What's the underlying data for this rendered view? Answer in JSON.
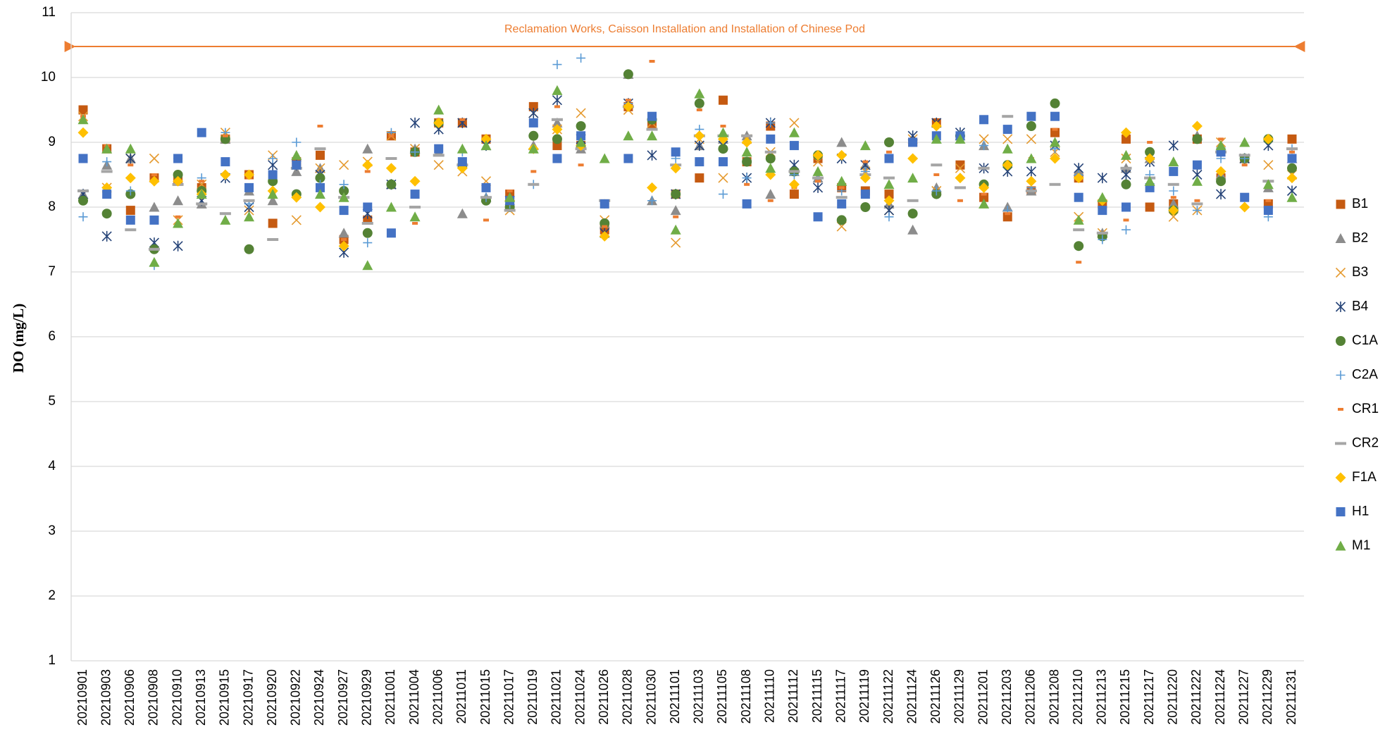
{
  "chart_data": {
    "type": "scatter",
    "annotation": "Reclamation Works, Caisson Installation and Installation of Chinese Pod",
    "y_label": "DO (mg/L)",
    "ylim": [
      1,
      11
    ],
    "yticks": [
      1,
      2,
      3,
      4,
      5,
      6,
      7,
      8,
      9,
      10,
      11
    ],
    "grid": true,
    "legend": "right",
    "categories": [
      "20210901",
      "20210903",
      "20210906",
      "20210908",
      "20210910",
      "20210913",
      "20210915",
      "20210917",
      "20210920",
      "20210922",
      "20210924",
      "20210927",
      "20210929",
      "20211001",
      "20211004",
      "20211006",
      "20211011",
      "20211015",
      "20211017",
      "20211019",
      "20211021",
      "20211024",
      "20211026",
      "20211028",
      "20211030",
      "20211101",
      "20211103",
      "20211105",
      "20211108",
      "20211110",
      "20211112",
      "20211115",
      "20211117",
      "20211119",
      "20211122",
      "20211124",
      "20211126",
      "20211129",
      "20211201",
      "20211203",
      "20211206",
      "20211208",
      "20211210",
      "20211213",
      "20211215",
      "20211217",
      "20211220",
      "20211222",
      "20211224",
      "20211227",
      "20211229",
      "20211231"
    ],
    "series": [
      {
        "name": "B1",
        "color": "#c55a11",
        "marker": "square",
        "values": [
          9.5,
          8.9,
          7.95,
          8.45,
          8.4,
          8.3,
          9.05,
          8.5,
          7.75,
          8.7,
          8.8,
          7.5,
          7.8,
          9.1,
          8.85,
          9.3,
          9.3,
          9.05,
          8.2,
          9.55,
          8.95,
          8.95,
          7.65,
          9.55,
          9.25,
          8.2,
          8.45,
          9.65,
          8.7,
          9.25,
          8.2,
          8.75,
          8.3,
          8.25,
          8.2,
          9.0,
          9.3,
          8.65,
          8.15,
          7.85,
          8.25,
          9.15,
          8.45,
          8.05,
          9.05,
          8.0,
          8.05,
          9.05,
          8.45,
          8.75,
          8.05,
          9.05
        ]
      },
      {
        "name": "B2",
        "color": "#8c8c8c",
        "marker": "triangle",
        "values": [
          8.2,
          8.65,
          8.75,
          8.0,
          8.1,
          8.05,
          9.05,
          8.25,
          8.1,
          8.55,
          8.6,
          7.6,
          8.9,
          8.35,
          8.9,
          8.85,
          7.9,
          8.15,
          8.0,
          8.95,
          9.3,
          8.9,
          7.75,
          10.05,
          8.1,
          7.95,
          8.95,
          9.05,
          9.1,
          8.2,
          8.55,
          8.45,
          9.0,
          8.65,
          8.05,
          7.65,
          8.3,
          9.1,
          8.95,
          8.0,
          8.25,
          9.0,
          8.55,
          7.6,
          8.6,
          8.75,
          8.05,
          9.1,
          8.5,
          8.75,
          8.3,
          8.75
        ]
      },
      {
        "name": "B3",
        "color": "#e59a2f",
        "marker": "x",
        "values": [
          9.4,
          8.3,
          8.75,
          8.75,
          7.8,
          8.35,
          9.15,
          7.95,
          8.8,
          7.8,
          8.6,
          8.65,
          8.7,
          9.1,
          8.9,
          8.65,
          8.55,
          8.4,
          7.95,
          9.45,
          9.2,
          9.45,
          7.8,
          9.5,
          9.3,
          7.45,
          9.05,
          8.45,
          9.05,
          8.85,
          9.3,
          8.7,
          7.7,
          8.55,
          7.95,
          9.05,
          8.25,
          8.6,
          9.05,
          9.05,
          9.05,
          8.85,
          7.85,
          7.6,
          8.75,
          8.8,
          7.85,
          7.95,
          9.0,
          8.75,
          8.65,
          8.5
        ]
      },
      {
        "name": "B4",
        "color": "#264478",
        "marker": "star",
        "values": [
          8.2,
          7.55,
          8.75,
          7.45,
          7.4,
          8.1,
          8.45,
          8.0,
          8.65,
          8.65,
          8.5,
          7.3,
          7.9,
          8.35,
          9.3,
          9.2,
          9.3,
          8.95,
          8.1,
          9.45,
          9.65,
          9.05,
          7.6,
          9.6,
          8.8,
          8.2,
          8.95,
          8.95,
          8.45,
          9.3,
          8.65,
          8.3,
          8.75,
          8.65,
          7.95,
          9.1,
          9.3,
          9.15,
          8.6,
          8.55,
          8.55,
          8.95,
          8.6,
          8.45,
          8.5,
          8.7,
          8.95,
          8.5,
          8.2,
          8.75,
          8.95,
          8.25
        ]
      },
      {
        "name": "C1A",
        "color": "#548235",
        "marker": "circle",
        "values": [
          8.1,
          7.9,
          8.2,
          7.35,
          8.5,
          8.25,
          9.05,
          7.35,
          8.4,
          8.2,
          8.45,
          8.25,
          7.6,
          8.35,
          8.85,
          9.3,
          8.65,
          8.1,
          8.0,
          9.1,
          9.05,
          9.25,
          7.75,
          10.05,
          9.35,
          8.2,
          9.6,
          8.9,
          8.7,
          8.75,
          8.55,
          8.8,
          7.8,
          8.0,
          9.0,
          7.9,
          8.2,
          9.1,
          8.35,
          8.65,
          9.25,
          9.6,
          7.4,
          7.55,
          8.35,
          8.85,
          7.95,
          9.05,
          8.4,
          8.75,
          9.05,
          8.6
        ]
      },
      {
        "name": "C2A",
        "color": "#5b9bd5",
        "marker": "plus",
        "values": [
          7.85,
          8.7,
          8.25,
          7.1,
          8.75,
          8.45,
          9.15,
          8.05,
          8.75,
          9.0,
          8.35,
          8.35,
          7.45,
          9.15,
          8.85,
          9.3,
          8.85,
          8.15,
          8.05,
          8.35,
          10.2,
          10.3,
          8.05,
          9.6,
          8.1,
          8.75,
          9.2,
          8.2,
          8.45,
          9.3,
          8.5,
          8.45,
          8.25,
          8.55,
          7.85,
          9.0,
          8.25,
          9.05,
          8.95,
          7.95,
          8.3,
          8.9,
          8.5,
          7.5,
          7.65,
          8.5,
          8.25,
          7.95,
          8.75,
          8.75,
          7.85,
          8.9
        ]
      },
      {
        "name": "CR1",
        "color": "#ed7d31",
        "marker": "dash",
        "values": [
          9.4,
          8.95,
          8.65,
          8.5,
          7.85,
          8.4,
          9.1,
          8.45,
          8.2,
          8.65,
          9.25,
          7.5,
          8.55,
          9.1,
          7.75,
          9.35,
          9.35,
          7.8,
          8.25,
          8.55,
          9.55,
          8.65,
          7.7,
          9.65,
          10.25,
          7.85,
          9.5,
          9.25,
          8.35,
          8.1,
          8.3,
          8.4,
          8.3,
          8.7,
          8.85,
          9.05,
          8.5,
          8.1,
          8.2,
          7.9,
          8.75,
          9.2,
          7.15,
          7.6,
          7.8,
          9.0,
          8.15,
          8.1,
          9.05,
          8.65,
          8.1,
          8.85
        ]
      },
      {
        "name": "CR2",
        "color": "#a5a5a5",
        "marker": "longdash",
        "values": [
          8.25,
          8.55,
          7.65,
          7.35,
          8.35,
          8.05,
          7.9,
          8.1,
          7.5,
          8.6,
          8.9,
          8.15,
          7.75,
          8.75,
          8.0,
          8.8,
          8.65,
          8.15,
          7.95,
          8.35,
          9.35,
          8.9,
          8.1,
          9.55,
          9.2,
          8.65,
          9.1,
          9.1,
          9.1,
          8.85,
          8.55,
          8.45,
          8.15,
          8.5,
          8.45,
          8.1,
          8.65,
          8.3,
          8.6,
          9.4,
          8.25,
          8.35,
          7.65,
          7.6,
          8.6,
          8.45,
          8.35,
          8.05,
          8.85,
          8.8,
          8.4,
          8.9
        ]
      },
      {
        "name": "F1A",
        "color": "#ffc000",
        "marker": "diamond",
        "values": [
          9.15,
          8.3,
          8.45,
          8.4,
          8.4,
          8.2,
          8.5,
          8.5,
          8.25,
          8.15,
          8.0,
          7.4,
          8.65,
          8.6,
          8.4,
          9.3,
          8.6,
          9.05,
          8.1,
          8.9,
          9.2,
          8.95,
          7.55,
          9.55,
          8.3,
          8.6,
          9.1,
          9.05,
          9.0,
          8.5,
          8.35,
          8.8,
          8.8,
          8.45,
          8.1,
          8.75,
          9.25,
          8.45,
          8.3,
          8.65,
          8.4,
          8.75,
          8.45,
          8.1,
          9.15,
          8.75,
          7.95,
          9.25,
          8.55,
          8.0,
          9.05,
          8.45
        ]
      },
      {
        "name": "H1",
        "color": "#4472c4",
        "marker": "square",
        "values": [
          8.75,
          8.2,
          7.8,
          7.8,
          8.75,
          9.15,
          8.7,
          8.3,
          8.5,
          8.65,
          8.3,
          7.95,
          8.0,
          7.6,
          8.2,
          8.9,
          8.7,
          8.3,
          8.1,
          9.3,
          8.75,
          9.1,
          8.05,
          8.75,
          9.4,
          8.85,
          8.7,
          8.7,
          8.05,
          9.05,
          8.95,
          7.85,
          8.05,
          8.2,
          8.75,
          9.0,
          9.1,
          9.1,
          9.35,
          9.2,
          9.4,
          9.4,
          8.15,
          7.95,
          8.0,
          8.3,
          8.55,
          8.65,
          8.85,
          8.15,
          7.95,
          8.75
        ]
      },
      {
        "name": "M1",
        "color": "#70ad47",
        "marker": "triangle",
        "values": [
          9.35,
          8.9,
          8.9,
          7.15,
          7.75,
          8.2,
          7.8,
          7.85,
          8.2,
          8.8,
          8.2,
          8.15,
          7.1,
          8.0,
          7.85,
          9.5,
          8.9,
          8.95,
          8.15,
          8.9,
          9.8,
          9.0,
          8.75,
          9.1,
          9.1,
          7.65,
          9.75,
          9.15,
          8.85,
          8.6,
          9.15,
          8.55,
          8.4,
          8.95,
          8.35,
          8.45,
          9.05,
          9.05,
          8.05,
          8.9,
          8.75,
          9.0,
          7.8,
          8.15,
          8.8,
          8.4,
          8.7,
          8.4,
          8.95,
          9.0,
          8.35,
          8.15
        ]
      }
    ]
  }
}
